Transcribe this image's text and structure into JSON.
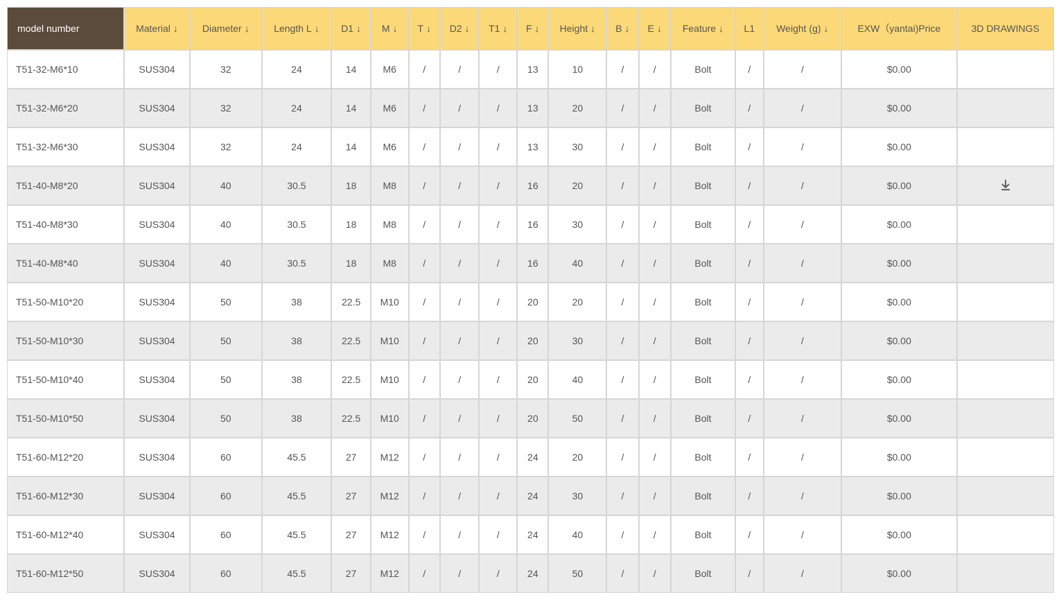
{
  "colors": {
    "model_header_bg": "#5a4b3a",
    "model_header_text": "#ffffff",
    "header_bg": "#fcd978",
    "header_text": "#555555",
    "border": "#d6d6d6",
    "row_even_bg": "#ffffff",
    "row_odd_bg": "#ebebeb",
    "body_text": "#555555",
    "download_icon": "#555555"
  },
  "table": {
    "columns": [
      {
        "key": "model_number",
        "label": "model number",
        "sortable": false,
        "is_model": true
      },
      {
        "key": "material",
        "label": "Material",
        "sortable": true
      },
      {
        "key": "diameter",
        "label": "Diameter",
        "sortable": true
      },
      {
        "key": "length_l",
        "label": "Length L",
        "sortable": true
      },
      {
        "key": "d1",
        "label": "D1",
        "sortable": true
      },
      {
        "key": "m",
        "label": "M",
        "sortable": true
      },
      {
        "key": "t",
        "label": "T",
        "sortable": true
      },
      {
        "key": "d2",
        "label": "D2",
        "sortable": true
      },
      {
        "key": "t1",
        "label": "T1",
        "sortable": true
      },
      {
        "key": "f",
        "label": "F",
        "sortable": true
      },
      {
        "key": "height",
        "label": "Height",
        "sortable": true
      },
      {
        "key": "b",
        "label": "B",
        "sortable": true
      },
      {
        "key": "e",
        "label": "E",
        "sortable": true
      },
      {
        "key": "feature",
        "label": "Feature",
        "sortable": true
      },
      {
        "key": "l1",
        "label": "L1",
        "sortable": false
      },
      {
        "key": "weight",
        "label": "Weight (g)",
        "sortable": true
      },
      {
        "key": "price",
        "label": "EXW（yantai)Price",
        "sortable": false
      },
      {
        "key": "drawings",
        "label": "3D DRAWINGS",
        "sortable": false
      }
    ],
    "rows": [
      {
        "model_number": "T51-32-M6*10",
        "material": "SUS304",
        "diameter": "32",
        "length_l": "24",
        "d1": "14",
        "m": "M6",
        "t": "/",
        "d2": "/",
        "t1": "/",
        "f": "13",
        "height": "10",
        "b": "/",
        "e": "/",
        "feature": "Bolt",
        "l1": "/",
        "weight": "/",
        "price": "$0.00",
        "has_download": false
      },
      {
        "model_number": "T51-32-M6*20",
        "material": "SUS304",
        "diameter": "32",
        "length_l": "24",
        "d1": "14",
        "m": "M6",
        "t": "/",
        "d2": "/",
        "t1": "/",
        "f": "13",
        "height": "20",
        "b": "/",
        "e": "/",
        "feature": "Bolt",
        "l1": "/",
        "weight": "/",
        "price": "$0.00",
        "has_download": false
      },
      {
        "model_number": "T51-32-M6*30",
        "material": "SUS304",
        "diameter": "32",
        "length_l": "24",
        "d1": "14",
        "m": "M6",
        "t": "/",
        "d2": "/",
        "t1": "/",
        "f": "13",
        "height": "30",
        "b": "/",
        "e": "/",
        "feature": "Bolt",
        "l1": "/",
        "weight": "/",
        "price": "$0.00",
        "has_download": false
      },
      {
        "model_number": "T51-40-M8*20",
        "material": "SUS304",
        "diameter": "40",
        "length_l": "30.5",
        "d1": "18",
        "m": "M8",
        "t": "/",
        "d2": "/",
        "t1": "/",
        "f": "16",
        "height": "20",
        "b": "/",
        "e": "/",
        "feature": "Bolt",
        "l1": "/",
        "weight": "/",
        "price": "$0.00",
        "has_download": true
      },
      {
        "model_number": "T51-40-M8*30",
        "material": "SUS304",
        "diameter": "40",
        "length_l": "30.5",
        "d1": "18",
        "m": "M8",
        "t": "/",
        "d2": "/",
        "t1": "/",
        "f": "16",
        "height": "30",
        "b": "/",
        "e": "/",
        "feature": "Bolt",
        "l1": "/",
        "weight": "/",
        "price": "$0.00",
        "has_download": false
      },
      {
        "model_number": "T51-40-M8*40",
        "material": "SUS304",
        "diameter": "40",
        "length_l": "30.5",
        "d1": "18",
        "m": "M8",
        "t": "/",
        "d2": "/",
        "t1": "/",
        "f": "16",
        "height": "40",
        "b": "/",
        "e": "/",
        "feature": "Bolt",
        "l1": "/",
        "weight": "/",
        "price": "$0.00",
        "has_download": false
      },
      {
        "model_number": "T51-50-M10*20",
        "material": "SUS304",
        "diameter": "50",
        "length_l": "38",
        "d1": "22.5",
        "m": "M10",
        "t": "/",
        "d2": "/",
        "t1": "/",
        "f": "20",
        "height": "20",
        "b": "/",
        "e": "/",
        "feature": "Bolt",
        "l1": "/",
        "weight": "/",
        "price": "$0.00",
        "has_download": false
      },
      {
        "model_number": "T51-50-M10*30",
        "material": "SUS304",
        "diameter": "50",
        "length_l": "38",
        "d1": "22.5",
        "m": "M10",
        "t": "/",
        "d2": "/",
        "t1": "/",
        "f": "20",
        "height": "30",
        "b": "/",
        "e": "/",
        "feature": "Bolt",
        "l1": "/",
        "weight": "/",
        "price": "$0.00",
        "has_download": false
      },
      {
        "model_number": "T51-50-M10*40",
        "material": "SUS304",
        "diameter": "50",
        "length_l": "38",
        "d1": "22.5",
        "m": "M10",
        "t": "/",
        "d2": "/",
        "t1": "/",
        "f": "20",
        "height": "40",
        "b": "/",
        "e": "/",
        "feature": "Bolt",
        "l1": "/",
        "weight": "/",
        "price": "$0.00",
        "has_download": false
      },
      {
        "model_number": "T51-50-M10*50",
        "material": "SUS304",
        "diameter": "50",
        "length_l": "38",
        "d1": "22.5",
        "m": "M10",
        "t": "/",
        "d2": "/",
        "t1": "/",
        "f": "20",
        "height": "50",
        "b": "/",
        "e": "/",
        "feature": "Bolt",
        "l1": "/",
        "weight": "/",
        "price": "$0.00",
        "has_download": false
      },
      {
        "model_number": "T51-60-M12*20",
        "material": "SUS304",
        "diameter": "60",
        "length_l": "45.5",
        "d1": "27",
        "m": "M12",
        "t": "/",
        "d2": "/",
        "t1": "/",
        "f": "24",
        "height": "20",
        "b": "/",
        "e": "/",
        "feature": "Bolt",
        "l1": "/",
        "weight": "/",
        "price": "$0.00",
        "has_download": false
      },
      {
        "model_number": "T51-60-M12*30",
        "material": "SUS304",
        "diameter": "60",
        "length_l": "45.5",
        "d1": "27",
        "m": "M12",
        "t": "/",
        "d2": "/",
        "t1": "/",
        "f": "24",
        "height": "30",
        "b": "/",
        "e": "/",
        "feature": "Bolt",
        "l1": "/",
        "weight": "/",
        "price": "$0.00",
        "has_download": false
      },
      {
        "model_number": "T51-60-M12*40",
        "material": "SUS304",
        "diameter": "60",
        "length_l": "45.5",
        "d1": "27",
        "m": "M12",
        "t": "/",
        "d2": "/",
        "t1": "/",
        "f": "24",
        "height": "40",
        "b": "/",
        "e": "/",
        "feature": "Bolt",
        "l1": "/",
        "weight": "/",
        "price": "$0.00",
        "has_download": false
      },
      {
        "model_number": "T51-60-M12*50",
        "material": "SUS304",
        "diameter": "60",
        "length_l": "45.5",
        "d1": "27",
        "m": "M12",
        "t": "/",
        "d2": "/",
        "t1": "/",
        "f": "24",
        "height": "50",
        "b": "/",
        "e": "/",
        "feature": "Bolt",
        "l1": "/",
        "weight": "/",
        "price": "$0.00",
        "has_download": false
      }
    ]
  }
}
